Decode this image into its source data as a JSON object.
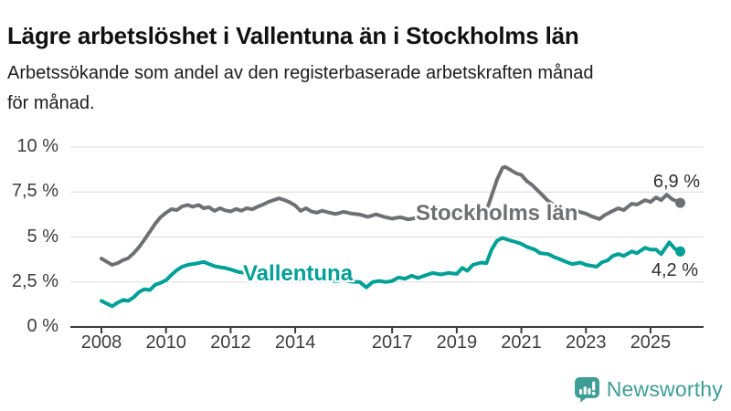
{
  "header": {
    "title": "Lägre arbetslöshet i Vallentuna än i Stockholms län",
    "subtitle_lines": [
      "Arbetssökande som andel av den registerbaserade arbetskraften månad",
      "för månad."
    ]
  },
  "chart_data": {
    "type": "line",
    "title": "Lägre arbetslöshet i Vallentuna än i Stockholms län",
    "xlabel": "",
    "ylabel": "",
    "ylim": [
      0,
      10
    ],
    "xlim": [
      2007.6,
      2026.3
    ],
    "grid": "horizontal",
    "legend_position": "inline-labels",
    "y_tick_values": [
      0,
      2.5,
      5,
      7.5,
      10
    ],
    "y_tick_labels": [
      "0 %",
      "2,5 %",
      "5 %",
      "7,5 %",
      "10 %"
    ],
    "x_tick_values": [
      2008,
      2010,
      2012,
      2014,
      2017,
      2019,
      2021,
      2023,
      2025
    ],
    "x_tick_labels": [
      "2008",
      "2010",
      "2012",
      "2014",
      "2017",
      "2019",
      "2021",
      "2023",
      "2025"
    ],
    "axis_color": "#3b3b3b",
    "grid_color": "#dcdcdc",
    "series": [
      {
        "name": "Stockholms län",
        "color": "#6e7073",
        "end_label": "6,9 %",
        "end_value": 6.9,
        "points": [
          [
            2008.0,
            3.8
          ],
          [
            2008.17,
            3.62
          ],
          [
            2008.33,
            3.45
          ],
          [
            2008.5,
            3.55
          ],
          [
            2008.67,
            3.72
          ],
          [
            2008.83,
            3.82
          ],
          [
            2009.0,
            4.1
          ],
          [
            2009.17,
            4.45
          ],
          [
            2009.33,
            4.85
          ],
          [
            2009.5,
            5.3
          ],
          [
            2009.67,
            5.75
          ],
          [
            2009.83,
            6.1
          ],
          [
            2010.0,
            6.35
          ],
          [
            2010.17,
            6.55
          ],
          [
            2010.33,
            6.5
          ],
          [
            2010.5,
            6.7
          ],
          [
            2010.67,
            6.78
          ],
          [
            2010.83,
            6.68
          ],
          [
            2011.0,
            6.78
          ],
          [
            2011.17,
            6.6
          ],
          [
            2011.33,
            6.66
          ],
          [
            2011.5,
            6.45
          ],
          [
            2011.67,
            6.6
          ],
          [
            2011.83,
            6.48
          ],
          [
            2012.0,
            6.42
          ],
          [
            2012.17,
            6.56
          ],
          [
            2012.33,
            6.46
          ],
          [
            2012.5,
            6.6
          ],
          [
            2012.67,
            6.54
          ],
          [
            2012.83,
            6.68
          ],
          [
            2013.0,
            6.8
          ],
          [
            2013.17,
            6.95
          ],
          [
            2013.33,
            7.05
          ],
          [
            2013.5,
            7.15
          ],
          [
            2013.67,
            7.05
          ],
          [
            2013.83,
            6.93
          ],
          [
            2014.0,
            6.75
          ],
          [
            2014.17,
            6.45
          ],
          [
            2014.33,
            6.6
          ],
          [
            2014.5,
            6.42
          ],
          [
            2014.67,
            6.35
          ],
          [
            2014.83,
            6.46
          ],
          [
            2015.0,
            6.38
          ],
          [
            2015.25,
            6.28
          ],
          [
            2015.5,
            6.4
          ],
          [
            2015.75,
            6.3
          ],
          [
            2016.0,
            6.25
          ],
          [
            2016.25,
            6.12
          ],
          [
            2016.5,
            6.26
          ],
          [
            2016.75,
            6.12
          ],
          [
            2017.0,
            6.02
          ],
          [
            2017.25,
            6.1
          ],
          [
            2017.5,
            5.98
          ],
          [
            2017.75,
            6.06
          ],
          [
            2018.0,
            6.0
          ],
          [
            2018.25,
            6.1
          ],
          [
            2018.5,
            6.02
          ],
          [
            2018.75,
            6.12
          ],
          [
            2019.0,
            6.2
          ],
          [
            2019.25,
            6.3
          ],
          [
            2019.5,
            6.22
          ],
          [
            2019.75,
            6.3
          ],
          [
            2019.92,
            6.45
          ],
          [
            2020.08,
            7.3
          ],
          [
            2020.25,
            8.2
          ],
          [
            2020.42,
            8.85
          ],
          [
            2020.5,
            8.9
          ],
          [
            2020.67,
            8.72
          ],
          [
            2020.83,
            8.55
          ],
          [
            2021.0,
            8.45
          ],
          [
            2021.17,
            8.1
          ],
          [
            2021.33,
            7.9
          ],
          [
            2021.5,
            7.6
          ],
          [
            2021.67,
            7.3
          ],
          [
            2021.83,
            7.0
          ],
          [
            2022.0,
            6.8
          ],
          [
            2022.17,
            6.62
          ],
          [
            2022.33,
            6.55
          ],
          [
            2022.5,
            6.45
          ],
          [
            2022.67,
            6.48
          ],
          [
            2022.83,
            6.38
          ],
          [
            2023.0,
            6.3
          ],
          [
            2023.17,
            6.15
          ],
          [
            2023.42,
            6.0
          ],
          [
            2023.58,
            6.22
          ],
          [
            2023.83,
            6.45
          ],
          [
            2024.0,
            6.6
          ],
          [
            2024.17,
            6.5
          ],
          [
            2024.42,
            6.85
          ],
          [
            2024.58,
            6.8
          ],
          [
            2024.83,
            7.05
          ],
          [
            2025.0,
            6.95
          ],
          [
            2025.17,
            7.2
          ],
          [
            2025.33,
            7.05
          ],
          [
            2025.5,
            7.35
          ],
          [
            2025.67,
            7.1
          ],
          [
            2025.92,
            6.9
          ]
        ]
      },
      {
        "name": "Vallentuna",
        "color": "#00a096",
        "end_label": "4,2 %",
        "end_value": 4.2,
        "points": [
          [
            2008.0,
            1.45
          ],
          [
            2008.17,
            1.3
          ],
          [
            2008.33,
            1.15
          ],
          [
            2008.5,
            1.35
          ],
          [
            2008.67,
            1.5
          ],
          [
            2008.83,
            1.45
          ],
          [
            2009.0,
            1.65
          ],
          [
            2009.17,
            1.95
          ],
          [
            2009.33,
            2.1
          ],
          [
            2009.5,
            2.05
          ],
          [
            2009.67,
            2.35
          ],
          [
            2009.83,
            2.45
          ],
          [
            2010.0,
            2.6
          ],
          [
            2010.17,
            2.9
          ],
          [
            2010.33,
            3.15
          ],
          [
            2010.5,
            3.35
          ],
          [
            2010.67,
            3.45
          ],
          [
            2010.83,
            3.5
          ],
          [
            2011.0,
            3.55
          ],
          [
            2011.17,
            3.62
          ],
          [
            2011.33,
            3.5
          ],
          [
            2011.5,
            3.38
          ],
          [
            2011.67,
            3.32
          ],
          [
            2011.83,
            3.28
          ],
          [
            2012.0,
            3.2
          ],
          [
            2012.25,
            3.05
          ],
          [
            2012.5,
            3.0
          ],
          [
            2012.75,
            2.95
          ],
          [
            2013.0,
            2.9
          ],
          [
            2013.25,
            2.8
          ],
          [
            2013.5,
            2.72
          ],
          [
            2013.75,
            2.65
          ],
          [
            2014.0,
            2.7
          ],
          [
            2014.25,
            2.6
          ],
          [
            2014.5,
            2.68
          ],
          [
            2014.75,
            2.58
          ],
          [
            2015.0,
            2.62
          ],
          [
            2015.25,
            2.55
          ],
          [
            2015.5,
            2.6
          ],
          [
            2015.75,
            2.52
          ],
          [
            2016.0,
            2.5
          ],
          [
            2016.2,
            2.2
          ],
          [
            2016.4,
            2.5
          ],
          [
            2016.6,
            2.56
          ],
          [
            2016.8,
            2.5
          ],
          [
            2017.0,
            2.56
          ],
          [
            2017.2,
            2.75
          ],
          [
            2017.4,
            2.68
          ],
          [
            2017.6,
            2.85
          ],
          [
            2017.8,
            2.72
          ],
          [
            2018.0,
            2.85
          ],
          [
            2018.25,
            3.0
          ],
          [
            2018.5,
            2.92
          ],
          [
            2018.75,
            3.0
          ],
          [
            2019.0,
            2.95
          ],
          [
            2019.17,
            3.28
          ],
          [
            2019.33,
            3.12
          ],
          [
            2019.5,
            3.45
          ],
          [
            2019.75,
            3.58
          ],
          [
            2019.92,
            3.55
          ],
          [
            2020.08,
            4.3
          ],
          [
            2020.25,
            4.8
          ],
          [
            2020.42,
            4.95
          ],
          [
            2020.58,
            4.85
          ],
          [
            2020.83,
            4.72
          ],
          [
            2021.0,
            4.62
          ],
          [
            2021.17,
            4.45
          ],
          [
            2021.42,
            4.3
          ],
          [
            2021.58,
            4.1
          ],
          [
            2021.83,
            4.05
          ],
          [
            2022.0,
            3.9
          ],
          [
            2022.17,
            3.78
          ],
          [
            2022.42,
            3.6
          ],
          [
            2022.58,
            3.5
          ],
          [
            2022.83,
            3.58
          ],
          [
            2023.0,
            3.45
          ],
          [
            2023.17,
            3.4
          ],
          [
            2023.33,
            3.35
          ],
          [
            2023.5,
            3.6
          ],
          [
            2023.67,
            3.7
          ],
          [
            2023.83,
            3.95
          ],
          [
            2024.0,
            4.05
          ],
          [
            2024.17,
            3.95
          ],
          [
            2024.42,
            4.2
          ],
          [
            2024.58,
            4.1
          ],
          [
            2024.83,
            4.4
          ],
          [
            2025.0,
            4.3
          ],
          [
            2025.17,
            4.3
          ],
          [
            2025.33,
            4.05
          ],
          [
            2025.58,
            4.7
          ],
          [
            2025.75,
            4.35
          ],
          [
            2025.92,
            4.2
          ]
        ]
      }
    ]
  },
  "footer": {
    "brand": "Newsworthy",
    "brand_color": "#3e9e96"
  }
}
